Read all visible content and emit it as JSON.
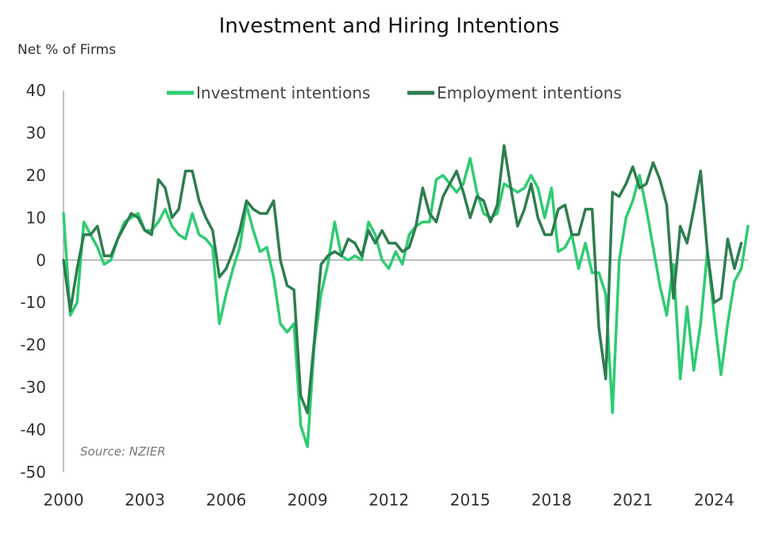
{
  "chart_data": {
    "type": "line",
    "title": "Investment and Hiring Intentions",
    "ylabel": "Net % of Firms",
    "xlabel": "",
    "source": "Source: NZIER",
    "x_start": 2000.0,
    "x_step": 0.25,
    "xlim": [
      2000.0,
      2025.25
    ],
    "ylim": [
      -50,
      40
    ],
    "yticks": [
      40,
      30,
      20,
      10,
      0,
      -10,
      -20,
      -30,
      -40,
      -50
    ],
    "xticks": [
      2000,
      2003,
      2006,
      2009,
      2012,
      2015,
      2018,
      2021,
      2024
    ],
    "legend_position": "top",
    "grid": false,
    "series": [
      {
        "name": "Investment intentions",
        "color": "#2ecc71",
        "values": [
          11,
          -13,
          -10,
          9,
          6,
          3,
          -1,
          0,
          5,
          9,
          10,
          11,
          7,
          7,
          9,
          12,
          8,
          6,
          5,
          11,
          6,
          5,
          3,
          -15,
          -8,
          -2,
          3,
          13,
          7,
          2,
          3,
          -4,
          -15,
          -17,
          -15,
          -39,
          -44,
          -20,
          -8,
          -1,
          9,
          1,
          0,
          1,
          0,
          9,
          6,
          0,
          -2,
          2,
          -1,
          6,
          8,
          9,
          9,
          19,
          20,
          18,
          16,
          18,
          24,
          16,
          11,
          10,
          11,
          18,
          17,
          16,
          17,
          20,
          17,
          10,
          17,
          2,
          3,
          6,
          -2,
          4,
          -3,
          -3,
          -8,
          -36,
          0,
          10,
          14,
          20,
          12,
          3,
          -6,
          -13,
          -1,
          -28,
          -11,
          -26,
          -15,
          2,
          -13,
          -27,
          -15,
          -5,
          -2,
          8
        ]
      },
      {
        "name": "Employment intentions",
        "color": "#2e7d4f",
        "values": [
          0,
          -12,
          -2,
          6,
          6,
          8,
          1,
          1,
          5,
          8,
          11,
          10,
          7,
          6,
          19,
          17,
          10,
          12,
          21,
          21,
          14,
          10,
          7,
          -4,
          -2,
          2,
          7,
          14,
          12,
          11,
          11,
          14,
          0,
          -6,
          -7,
          -32,
          -36,
          -19,
          -1,
          1,
          2,
          1,
          5,
          4,
          1,
          7,
          4,
          7,
          4,
          4,
          2,
          3,
          8,
          17,
          11,
          9,
          15,
          18,
          21,
          16,
          10,
          15,
          14,
          9,
          13,
          27,
          17,
          8,
          12,
          18,
          10,
          6,
          6,
          12,
          13,
          6,
          6,
          12,
          12,
          -16,
          -28,
          16,
          15,
          18,
          22,
          17,
          18,
          23,
          19,
          13,
          -9,
          8,
          4,
          12,
          21,
          2,
          -10,
          -9,
          5,
          -2,
          4
        ]
      }
    ]
  }
}
